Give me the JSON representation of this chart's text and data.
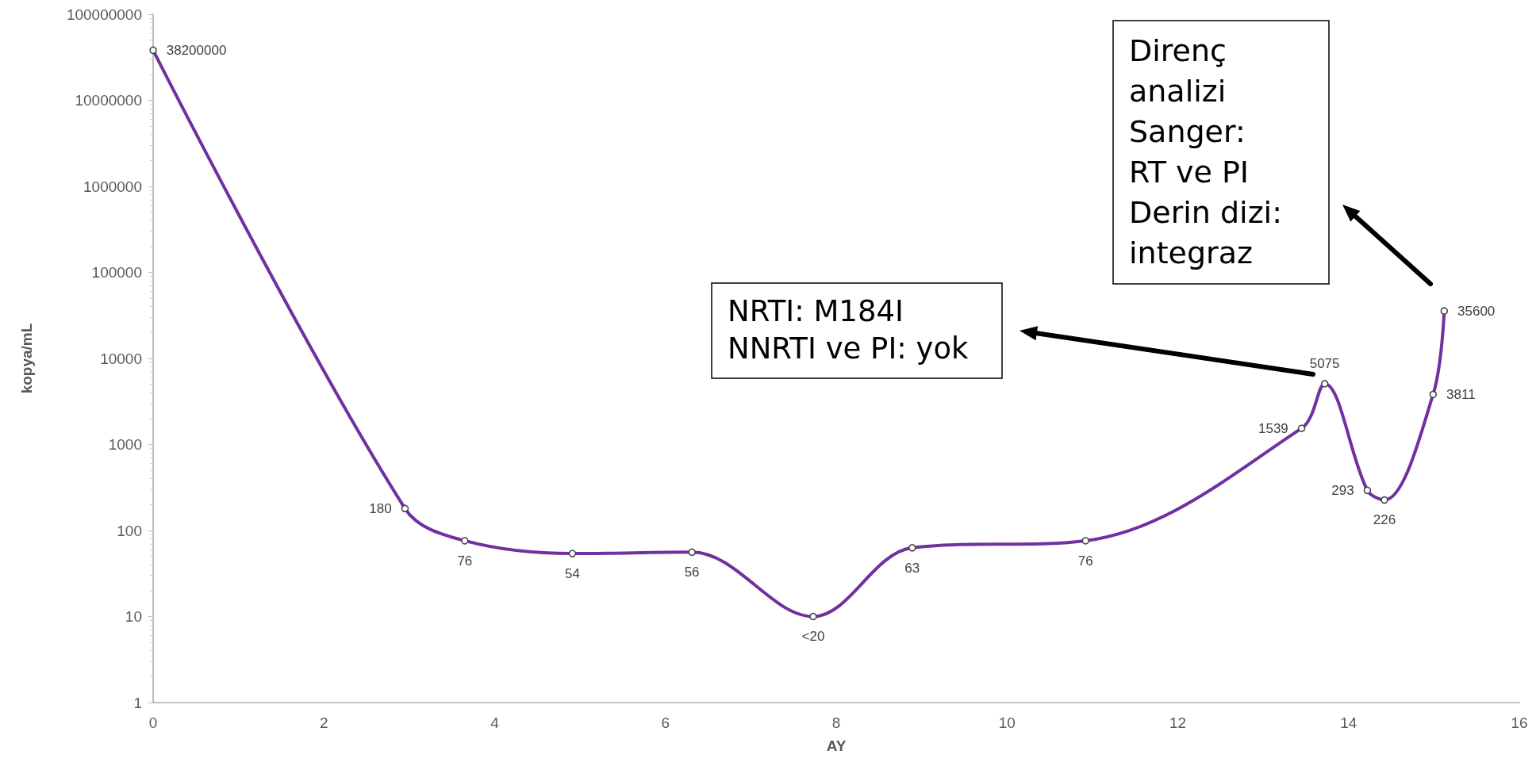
{
  "chart_data": {
    "type": "line",
    "xlabel": "AY",
    "ylabel": "kopya/mL",
    "x": [
      0,
      2.95,
      3.65,
      4.91,
      6.31,
      7.73,
      8.89,
      10.92,
      13.45,
      13.72,
      14.22,
      14.42,
      14.99,
      15.12
    ],
    "series": [
      {
        "color": "#7030a0",
        "values": [
          38200000,
          180,
          76,
          54,
          56,
          10,
          63,
          76,
          1539,
          5075,
          293,
          226,
          3811,
          35600
        ],
        "value_labels": [
          "38200000",
          "180",
          "76",
          "54",
          "56",
          "<20",
          "63",
          "76",
          "1539",
          "5075",
          "293",
          "226",
          "3811",
          "35600"
        ]
      }
    ],
    "xlim": [
      0,
      16
    ],
    "xticks": [
      0,
      2,
      4,
      6,
      8,
      10,
      12,
      14,
      16
    ],
    "ylim": [
      1,
      100000000
    ],
    "yticks": [
      1,
      10,
      100,
      1000,
      10000,
      100000,
      1000000,
      10000000,
      100000000
    ],
    "log": "y",
    "grid": false,
    "marker": "circle",
    "line_style": "solid",
    "annotations": [
      "NRTI: M184I\nNNRTI ve PI: yok",
      "Direnç\nanalizi\nSanger:\nRT ve PI\nDerin dizi:\nintegraz"
    ]
  }
}
